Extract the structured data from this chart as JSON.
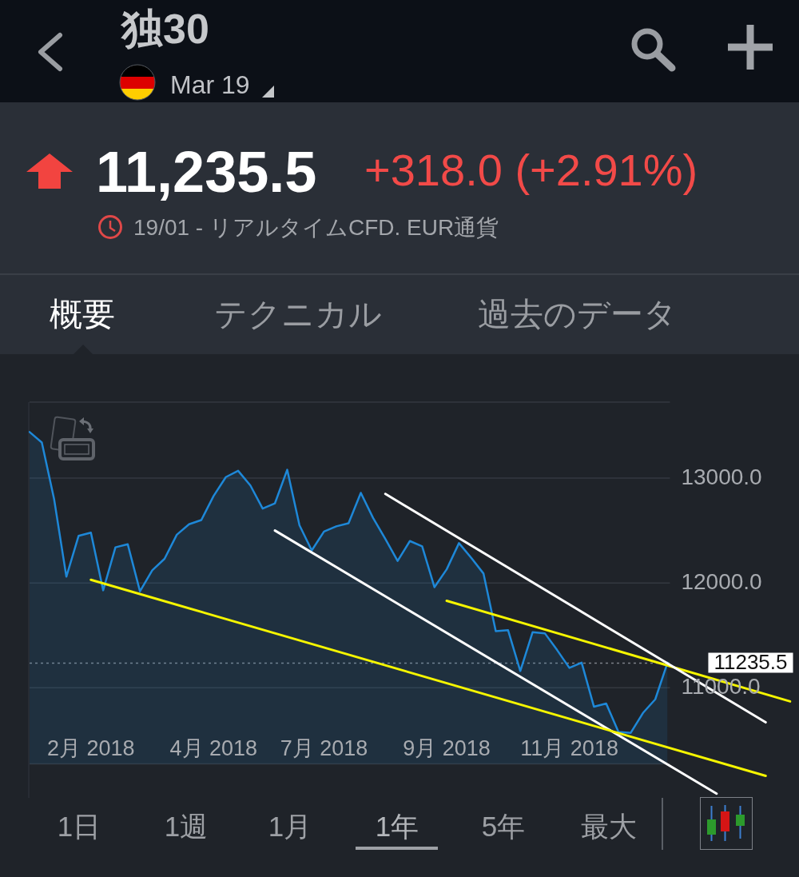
{
  "chart_data": {
    "type": "area",
    "title": "独30",
    "subtitle": "Mar 19",
    "annotations": [
      "11,235.5",
      "+318.0 (+2.91%)",
      "19/01 - リアルタイムCFD. EUR通貨",
      "概要",
      "テクニカル",
      "過去のデータ",
      "1日",
      "1週",
      "1月",
      "1年",
      "5年",
      "最大"
    ],
    "categories": [
      null,
      null,
      null,
      null,
      null,
      "2月 2018",
      null,
      null,
      null,
      null,
      null,
      null,
      null,
      null,
      null,
      "4月 2018",
      null,
      null,
      null,
      null,
      null,
      null,
      null,
      null,
      "7月 2018",
      null,
      null,
      null,
      null,
      null,
      null,
      null,
      null,
      null,
      "9月 2018",
      null,
      null,
      null,
      null,
      null,
      null,
      null,
      null,
      null,
      "11月 2018",
      null,
      null,
      null,
      null,
      null,
      null,
      null,
      null,
      null,
      null,
      null,
      null,
      null,
      null,
      null,
      null,
      null,
      null
    ],
    "series": [
      {
        "color": "#1e88d8",
        "values": [
          13440,
          13340,
          12800,
          12060,
          12450,
          12480,
          11930,
          12340,
          12370,
          11920,
          12120,
          12230,
          12460,
          12560,
          12600,
          12830,
          13010,
          13070,
          12930,
          12710,
          12760,
          13080,
          12550,
          12310,
          12490,
          12540,
          12570,
          12860,
          12620,
          12420,
          12210,
          12400,
          12350,
          11960,
          12130,
          12380,
          12240,
          12090,
          11540,
          11550,
          11160,
          11530,
          11520,
          11360,
          11190,
          11240,
          10820,
          10850,
          10580,
          10570,
          10760,
          10890,
          11240,
          null,
          null,
          null,
          null,
          null,
          null,
          null,
          null,
          null,
          null
        ]
      },
      {
        "type": "line",
        "color": "#f5f500",
        "values": [
          null,
          null,
          null,
          null,
          null,
          12030,
          null,
          null,
          null,
          null,
          null,
          null,
          null,
          null,
          null,
          null,
          null,
          null,
          null,
          null,
          null,
          null,
          null,
          null,
          null,
          null,
          null,
          null,
          null,
          null,
          null,
          null,
          null,
          null,
          null,
          null,
          null,
          null,
          null,
          null,
          null,
          null,
          null,
          null,
          null,
          null,
          null,
          null,
          null,
          null,
          null,
          null,
          null,
          null,
          null,
          null,
          null,
          null,
          null,
          null,
          10160,
          null,
          null
        ]
      },
      {
        "type": "line",
        "color": "#ffffff",
        "values": [
          null,
          null,
          null,
          null,
          null,
          null,
          null,
          null,
          null,
          null,
          null,
          null,
          null,
          null,
          null,
          null,
          null,
          null,
          null,
          null,
          12500,
          null,
          null,
          null,
          null,
          null,
          null,
          null,
          null,
          null,
          null,
          null,
          null,
          null,
          null,
          null,
          null,
          null,
          null,
          null,
          null,
          null,
          null,
          null,
          null,
          null,
          null,
          null,
          null,
          null,
          null,
          null,
          null,
          null,
          null,
          null,
          9990,
          null,
          null,
          null,
          null,
          null,
          null
        ]
      },
      {
        "type": "line",
        "color": "#ffffff",
        "values": [
          null,
          null,
          null,
          null,
          null,
          null,
          null,
          null,
          null,
          null,
          null,
          null,
          null,
          null,
          null,
          null,
          null,
          null,
          null,
          null,
          null,
          null,
          null,
          null,
          null,
          null,
          null,
          null,
          null,
          12850,
          null,
          null,
          null,
          null,
          null,
          null,
          null,
          null,
          null,
          null,
          null,
          null,
          null,
          null,
          null,
          null,
          null,
          null,
          null,
          null,
          null,
          null,
          null,
          null,
          null,
          null,
          null,
          null,
          null,
          null,
          10670,
          null,
          null
        ]
      },
      {
        "type": "line",
        "color": "#f5f500",
        "values": [
          null,
          null,
          null,
          null,
          null,
          null,
          null,
          null,
          null,
          null,
          null,
          null,
          null,
          null,
          null,
          null,
          null,
          null,
          null,
          null,
          null,
          null,
          null,
          null,
          null,
          null,
          null,
          null,
          null,
          null,
          null,
          null,
          null,
          null,
          11830,
          null,
          null,
          null,
          null,
          null,
          null,
          null,
          null,
          null,
          null,
          null,
          null,
          null,
          null,
          null,
          null,
          null,
          null,
          null,
          null,
          null,
          null,
          null,
          null,
          null,
          null,
          null,
          10870
        ]
      }
    ],
    "ylim": [
      9950,
      13725
    ],
    "yticks": [
      {
        "value": 10275,
        "label": null
      },
      {
        "value": 11000,
        "label": "11000.0"
      },
      {
        "value": 12000,
        "label": "12000.0"
      },
      {
        "value": 13000,
        "label": "13000.0"
      },
      {
        "value": 13725,
        "label": null
      }
    ],
    "grid": "y",
    "ref_lines": [
      {
        "axis": "y",
        "value": 11235.5,
        "label": "11235.5",
        "color": "#7d8189",
        "line_style": "dotted"
      }
    ]
  }
}
